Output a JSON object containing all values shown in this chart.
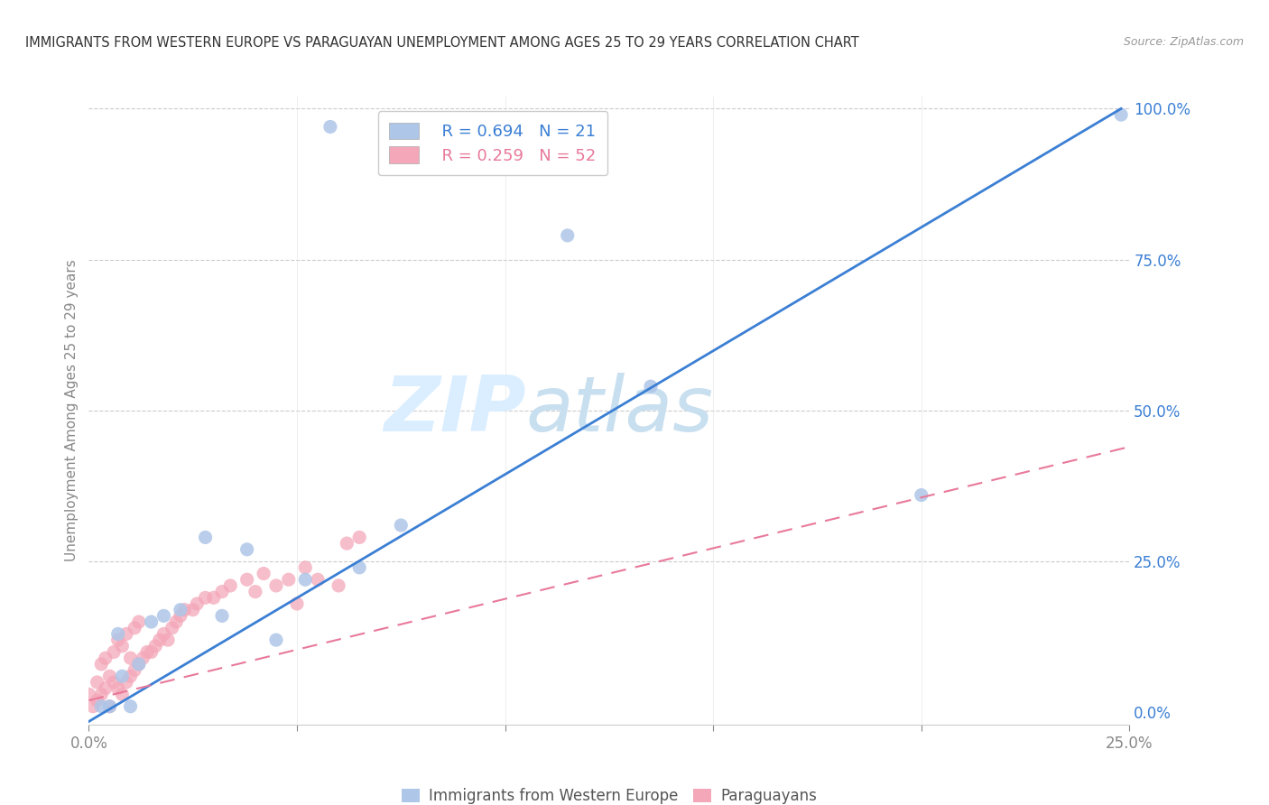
{
  "title": "IMMIGRANTS FROM WESTERN EUROPE VS PARAGUAYAN UNEMPLOYMENT AMONG AGES 25 TO 29 YEARS CORRELATION CHART",
  "source": "Source: ZipAtlas.com",
  "ylabel_label": "Unemployment Among Ages 25 to 29 years",
  "legend_blue_r": "R = 0.694",
  "legend_blue_n": "N = 21",
  "legend_pink_r": "R = 0.259",
  "legend_pink_n": "N = 52",
  "blue_color": "#aec6e8",
  "pink_color": "#f4a7b9",
  "blue_line_color": "#3b7fd4",
  "pink_line_color": "#e8799a",
  "watermark_zip": "ZIP",
  "watermark_atlas": "atlas",
  "watermark_color": "#daeeff",
  "xlim": [
    0.0,
    0.25
  ],
  "ylim": [
    -0.02,
    1.02
  ],
  "blue_scatter_x": [
    0.058,
    0.115,
    0.135,
    0.003,
    0.005,
    0.007,
    0.008,
    0.01,
    0.012,
    0.015,
    0.018,
    0.022,
    0.028,
    0.032,
    0.038,
    0.045,
    0.052,
    0.065,
    0.075,
    0.2,
    0.248
  ],
  "blue_scatter_y": [
    0.97,
    0.79,
    0.54,
    0.01,
    0.01,
    0.13,
    0.06,
    0.01,
    0.08,
    0.15,
    0.16,
    0.17,
    0.29,
    0.16,
    0.27,
    0.12,
    0.22,
    0.24,
    0.31,
    0.36,
    0.99
  ],
  "pink_scatter_x": [
    0.0,
    0.001,
    0.002,
    0.002,
    0.003,
    0.003,
    0.004,
    0.004,
    0.005,
    0.005,
    0.006,
    0.006,
    0.007,
    0.007,
    0.008,
    0.008,
    0.009,
    0.009,
    0.01,
    0.01,
    0.011,
    0.011,
    0.012,
    0.012,
    0.013,
    0.014,
    0.015,
    0.016,
    0.017,
    0.018,
    0.019,
    0.02,
    0.021,
    0.022,
    0.023,
    0.025,
    0.026,
    0.028,
    0.03,
    0.032,
    0.034,
    0.038,
    0.04,
    0.042,
    0.045,
    0.048,
    0.05,
    0.052,
    0.055,
    0.06,
    0.062,
    0.065
  ],
  "pink_scatter_y": [
    0.03,
    0.01,
    0.02,
    0.05,
    0.03,
    0.08,
    0.04,
    0.09,
    0.01,
    0.06,
    0.05,
    0.1,
    0.04,
    0.12,
    0.03,
    0.11,
    0.05,
    0.13,
    0.06,
    0.09,
    0.07,
    0.14,
    0.08,
    0.15,
    0.09,
    0.1,
    0.1,
    0.11,
    0.12,
    0.13,
    0.12,
    0.14,
    0.15,
    0.16,
    0.17,
    0.17,
    0.18,
    0.19,
    0.19,
    0.2,
    0.21,
    0.22,
    0.2,
    0.23,
    0.21,
    0.22,
    0.18,
    0.24,
    0.22,
    0.21,
    0.28,
    0.29
  ],
  "blue_line_x0": 0.0,
  "blue_line_y0": -0.015,
  "blue_line_x1": 0.248,
  "blue_line_y1": 1.0,
  "pink_line_x0": 0.0,
  "pink_line_y0": 0.02,
  "pink_line_x1": 0.25,
  "pink_line_y1": 0.44
}
